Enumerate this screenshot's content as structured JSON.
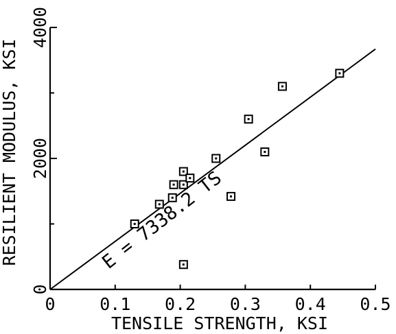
{
  "chart_data": {
    "type": "scatter",
    "xlabel": "TENSILE STRENGTH, KSI",
    "ylabel": "RESILIENT MODULUS, KSI",
    "xlim": [
      0,
      0.5
    ],
    "ylim": [
      0,
      4000
    ],
    "x_ticks": [
      "0",
      "0.1",
      "0.2",
      "0.3",
      "0.4",
      "0.5"
    ],
    "x_tick_values": [
      0,
      0.1,
      0.2,
      0.3,
      0.4,
      0.5
    ],
    "y_ticks": [
      "0",
      "2000",
      "4000"
    ],
    "y_tick_values": [
      0,
      2000,
      4000
    ],
    "y_minor_tick_values": [
      1000,
      3000
    ],
    "grid": false,
    "points": [
      {
        "x": 0.13,
        "y": 1000
      },
      {
        "x": 0.168,
        "y": 1300
      },
      {
        "x": 0.188,
        "y": 1400
      },
      {
        "x": 0.19,
        "y": 1600
      },
      {
        "x": 0.205,
        "y": 1600
      },
      {
        "x": 0.205,
        "y": 1800
      },
      {
        "x": 0.215,
        "y": 1700
      },
      {
        "x": 0.205,
        "y": 380
      },
      {
        "x": 0.255,
        "y": 2000
      },
      {
        "x": 0.278,
        "y": 1420
      },
      {
        "x": 0.305,
        "y": 2600
      },
      {
        "x": 0.33,
        "y": 2100
      },
      {
        "x": 0.357,
        "y": 3100
      },
      {
        "x": 0.445,
        "y": 3300
      }
    ],
    "fit_line": {
      "slope": 7338.2,
      "x_range": [
        0,
        0.5
      ],
      "label": "E = 7338.2 TS"
    }
  }
}
